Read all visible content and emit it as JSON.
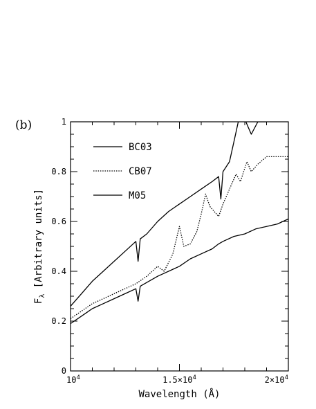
{
  "chart_data": {
    "type": "line",
    "panel_label": "(b)",
    "xlabel": "Wavelength (Å)",
    "ylabel": "Fλ [Arbitrary units]",
    "xlim": [
      10000,
      20000
    ],
    "ylim": [
      0,
      1
    ],
    "x_ticks": [
      {
        "value": 10000,
        "base": "10",
        "exp": "4"
      },
      {
        "value": 15000,
        "base": "1.5×10",
        "exp": "4"
      },
      {
        "value": 20000,
        "base": "2×10",
        "exp": "4"
      }
    ],
    "y_ticks": [
      {
        "value": 0,
        "label": "0"
      },
      {
        "value": 0.2,
        "label": "0.2"
      },
      {
        "value": 0.4,
        "label": "0.4"
      },
      {
        "value": 0.6,
        "label": "0.6"
      },
      {
        "value": 0.8,
        "label": "0.8"
      },
      {
        "value": 1,
        "label": "1"
      }
    ],
    "grid": false,
    "legend_position": "top-left",
    "series": [
      {
        "name": "BC03",
        "style": "solid",
        "color": "#000000",
        "points": [
          [
            10000,
            0.26
          ],
          [
            10500,
            0.31
          ],
          [
            11000,
            0.36
          ],
          [
            11500,
            0.4
          ],
          [
            12000,
            0.44
          ],
          [
            12500,
            0.48
          ],
          [
            13000,
            0.52
          ],
          [
            13100,
            0.44
          ],
          [
            13200,
            0.53
          ],
          [
            13500,
            0.55
          ],
          [
            14000,
            0.6
          ],
          [
            14500,
            0.64
          ],
          [
            15000,
            0.67
          ],
          [
            15500,
            0.7
          ],
          [
            16000,
            0.73
          ],
          [
            16500,
            0.76
          ],
          [
            16800,
            0.78
          ],
          [
            16900,
            0.69
          ],
          [
            17000,
            0.8
          ],
          [
            17300,
            0.84
          ],
          [
            17500,
            0.92
          ],
          [
            17700,
            1.0
          ],
          [
            18000,
            1.01
          ],
          [
            18300,
            0.95
          ],
          [
            18600,
            1.0
          ],
          [
            19000,
            1.0
          ],
          [
            19500,
            1.01
          ],
          [
            20000,
            1.02
          ]
        ]
      },
      {
        "name": "CB07",
        "style": "dotted",
        "color": "#000000",
        "points": [
          [
            10000,
            0.21
          ],
          [
            10500,
            0.24
          ],
          [
            11000,
            0.27
          ],
          [
            11500,
            0.29
          ],
          [
            12000,
            0.31
          ],
          [
            12500,
            0.33
          ],
          [
            13000,
            0.35
          ],
          [
            13500,
            0.38
          ],
          [
            14000,
            0.42
          ],
          [
            14300,
            0.4
          ],
          [
            14700,
            0.47
          ],
          [
            15000,
            0.58
          ],
          [
            15200,
            0.5
          ],
          [
            15500,
            0.51
          ],
          [
            15800,
            0.56
          ],
          [
            16000,
            0.63
          ],
          [
            16200,
            0.71
          ],
          [
            16400,
            0.66
          ],
          [
            16600,
            0.64
          ],
          [
            16800,
            0.62
          ],
          [
            17000,
            0.67
          ],
          [
            17300,
            0.73
          ],
          [
            17600,
            0.79
          ],
          [
            17800,
            0.76
          ],
          [
            18100,
            0.84
          ],
          [
            18300,
            0.8
          ],
          [
            18600,
            0.83
          ],
          [
            19000,
            0.86
          ],
          [
            19500,
            0.86
          ],
          [
            20000,
            0.86
          ]
        ]
      },
      {
        "name": "M05",
        "style": "solid",
        "color": "#000000",
        "points": [
          [
            10000,
            0.19
          ],
          [
            10500,
            0.22
          ],
          [
            11000,
            0.25
          ],
          [
            11500,
            0.27
          ],
          [
            12000,
            0.29
          ],
          [
            12500,
            0.31
          ],
          [
            13000,
            0.33
          ],
          [
            13100,
            0.28
          ],
          [
            13200,
            0.34
          ],
          [
            14000,
            0.38
          ],
          [
            15000,
            0.42
          ],
          [
            15500,
            0.45
          ],
          [
            16000,
            0.47
          ],
          [
            16500,
            0.49
          ],
          [
            16800,
            0.51
          ],
          [
            17000,
            0.52
          ],
          [
            17500,
            0.54
          ],
          [
            18000,
            0.55
          ],
          [
            18500,
            0.57
          ],
          [
            19000,
            0.58
          ],
          [
            19500,
            0.59
          ],
          [
            20000,
            0.61
          ]
        ]
      }
    ]
  }
}
